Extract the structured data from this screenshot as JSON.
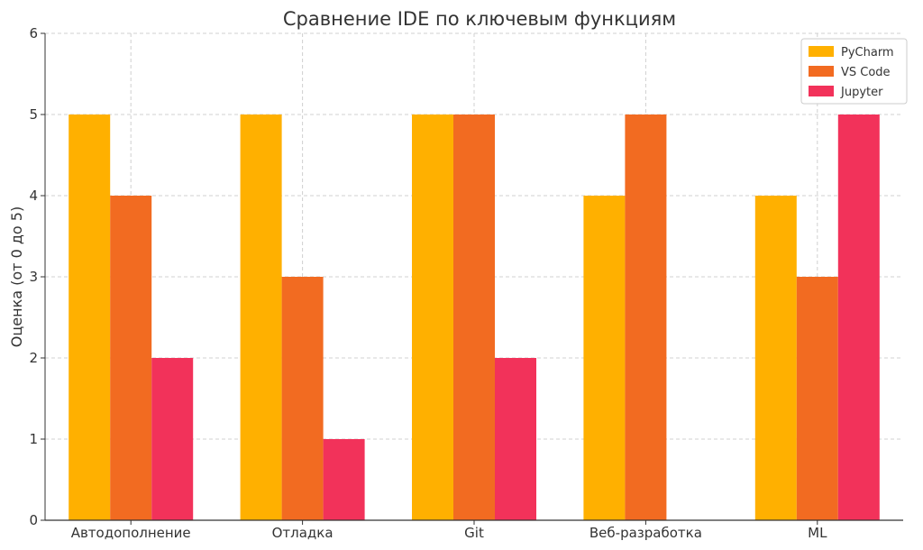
{
  "chart_data": {
    "type": "bar",
    "title": "Сравнение IDE по ключевым функциям",
    "xlabel": "",
    "ylabel": "Оценка (от 0 до 5)",
    "ylim": [
      0,
      6
    ],
    "yticks": [
      "0",
      "1",
      "2",
      "3",
      "4",
      "5",
      "6"
    ],
    "categories": [
      "Автодополнение",
      "Отладка",
      "Git",
      "Веб-разработка",
      "ML"
    ],
    "series": [
      {
        "name": "PyCharm",
        "color": "#FFB000",
        "values": [
          5,
          5,
          5,
          4,
          4
        ]
      },
      {
        "name": "VS Code",
        "color": "#F26B21",
        "values": [
          4,
          3,
          5,
          5,
          3
        ]
      },
      {
        "name": "Jupyter",
        "color": "#F2325A",
        "values": [
          2,
          1,
          2,
          0,
          5
        ]
      }
    ],
    "grid": true,
    "legend_position": "top-right"
  }
}
